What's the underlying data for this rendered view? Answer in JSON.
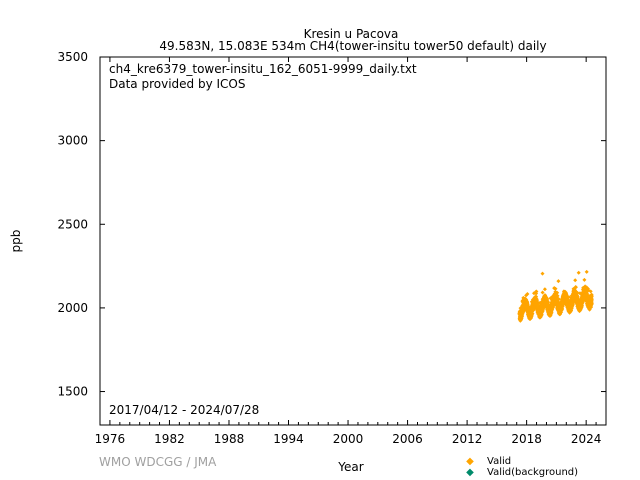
{
  "chart_data": {
    "type": "scatter",
    "title": "Kresin u Pacova",
    "subtitle": "49.583N, 15.083E 534m    CH4(tower-insitu tower50 default) daily",
    "xlabel": "Year",
    "ylabel": "ppb",
    "xlim": [
      1975,
      2026
    ],
    "ylim": [
      1300,
      3500
    ],
    "x_ticks": [
      "1976",
      "1982",
      "1988",
      "1994",
      "2000",
      "2006",
      "2012",
      "2018",
      "2024"
    ],
    "y_ticks": [
      "1500",
      "2000",
      "2500",
      "3000",
      "3500"
    ],
    "grid": false,
    "annotations": {
      "filename": "ch4_kre6379_tower-insitu_162_6051-9999_daily.txt",
      "provider": "Data provided by ICOS",
      "date_range": "2017/04/12 - 2024/07/28"
    },
    "legend": {
      "placement": "bottom-right",
      "entries": [
        {
          "name": "Valid",
          "color": "#ffa500"
        },
        {
          "name": "Valid(background)",
          "color": "#008b6b"
        }
      ]
    },
    "series": [
      {
        "name": "Valid",
        "color": "#ffa500",
        "x_start": 2017.28,
        "x_end": 2024.57,
        "baseline_start": 1975,
        "baseline_end": 2045,
        "seasonal_amplitude": 35,
        "spread": 60,
        "outliers": [
          {
            "x": 2019.6,
            "y": 2205
          },
          {
            "x": 2023.25,
            "y": 2210
          },
          {
            "x": 2024.05,
            "y": 2215
          },
          {
            "x": 2022.9,
            "y": 2165
          },
          {
            "x": 2021.2,
            "y": 2160
          }
        ]
      },
      {
        "name": "Valid(background)",
        "color": "#008b6b"
      }
    ]
  },
  "footer": {
    "watermark": "WMO WDCGG / JMA"
  }
}
